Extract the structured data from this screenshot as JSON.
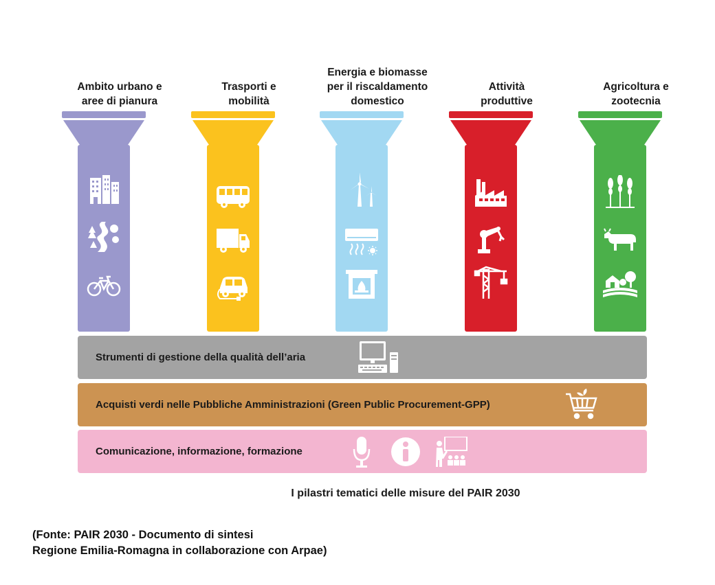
{
  "pillars": [
    {
      "title": "Ambito urbano e\naree di pianura",
      "color": "#9a98cc",
      "icons": [
        "buildings-icon",
        "river-trees-icon",
        "bicycle-icon"
      ]
    },
    {
      "title": "Trasporti e\nmobilità",
      "color": "#fbc21e",
      "icons": [
        "bus-icon",
        "truck-icon",
        "electric-car-icon"
      ]
    },
    {
      "title": "Energia e biomasse\nper il riscaldamento\ndomestico",
      "color": "#a2d8f2",
      "icons": [
        "wind-turbine-icon",
        "air-conditioner-icon",
        "fireplace-icon"
      ]
    },
    {
      "title": "Attività\nproduttive",
      "color": "#d81f2a",
      "icons": [
        "factory-icon",
        "robot-arm-icon",
        "crane-icon"
      ]
    },
    {
      "title": "Agricoltura e\nzootecnia",
      "color": "#4bb04a",
      "icons": [
        "wheat-icon",
        "cow-icon",
        "farm-icon"
      ]
    }
  ],
  "bands": [
    {
      "label": "Strumenti di gestione della qualità dell’aria",
      "color": "#a3a3a3",
      "icons": [
        "computer-icon"
      ]
    },
    {
      "label": "Acquisti verdi nelle Pubbliche Amministrazioni (Green Public Procurement-GPP)",
      "color": "#cc9352",
      "icons": [
        "green-cart-icon"
      ]
    },
    {
      "label": "Comunicazione, informazione, formazione",
      "color": "#f3b5d0",
      "icons": [
        "microphone-icon",
        "info-icon",
        "teacher-icon"
      ]
    }
  ],
  "caption": "I pilastri tematici delle misure del PAIR 2030",
  "source": {
    "line1": "(Fonte: PAIR 2030 - Documento di sintesi",
    "line2": "Regione Emilia-Romagna in collaborazione con Arpae)"
  }
}
